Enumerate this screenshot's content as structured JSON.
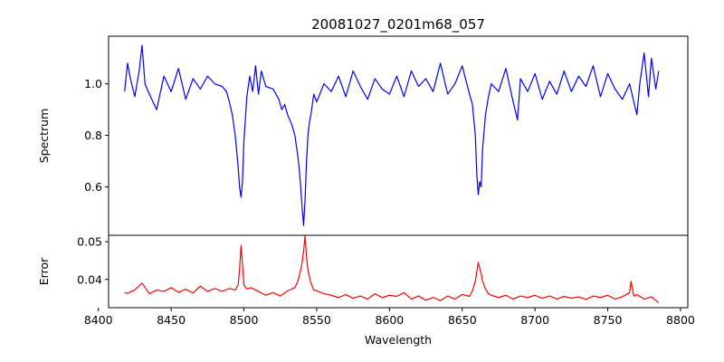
{
  "chart_data": [
    {
      "type": "line",
      "title": "20081027_0201m68_057",
      "xlabel": "",
      "ylabel": "Spectrum",
      "xlim": [
        8407,
        8805
      ],
      "ylim": [
        0.412,
        1.185
      ],
      "yticks": [
        0.6,
        0.8,
        1.0
      ],
      "ytick_labels": [
        "0.6",
        "0.8",
        "1.0"
      ],
      "grid": false,
      "series": [
        {
          "color": "#0000ff",
          "x": [
            8418,
            8420,
            8422,
            8425,
            8428,
            8430,
            8432,
            8435,
            8440,
            8445,
            8450,
            8455,
            8460,
            8465,
            8470,
            8475,
            8480,
            8485,
            8488,
            8490,
            8492,
            8494,
            8496,
            8497,
            8498,
            8499,
            8500,
            8502,
            8504,
            8506,
            8508,
            8510,
            8512,
            8515,
            8520,
            8524,
            8526,
            8528,
            8530,
            8533,
            8535,
            8537,
            8538,
            8539,
            8540,
            8541,
            8542,
            8543,
            8544,
            8545,
            8546,
            8548,
            8550,
            8555,
            8560,
            8565,
            8570,
            8575,
            8580,
            8585,
            8590,
            8595,
            8600,
            8605,
            8610,
            8615,
            8620,
            8625,
            8630,
            8635,
            8640,
            8645,
            8650,
            8655,
            8657,
            8659,
            8660,
            8661,
            8662,
            8663,
            8664,
            8666,
            8668,
            8670,
            8675,
            8680,
            8685,
            8688,
            8690,
            8695,
            8700,
            8705,
            8710,
            8715,
            8720,
            8725,
            8730,
            8735,
            8740,
            8745,
            8750,
            8755,
            8760,
            8765,
            8770,
            8772,
            8775,
            8778,
            8780,
            8783,
            8785
          ],
          "y": [
            0.97,
            1.08,
            1.02,
            0.95,
            1.05,
            1.15,
            1.0,
            0.96,
            0.9,
            1.03,
            0.97,
            1.06,
            0.94,
            1.02,
            0.98,
            1.03,
            1.0,
            0.99,
            0.97,
            0.93,
            0.88,
            0.8,
            0.68,
            0.6,
            0.56,
            0.62,
            0.78,
            0.95,
            1.03,
            0.97,
            1.07,
            0.96,
            1.05,
            0.99,
            0.98,
            0.94,
            0.9,
            0.92,
            0.88,
            0.84,
            0.8,
            0.72,
            0.67,
            0.6,
            0.52,
            0.45,
            0.55,
            0.7,
            0.8,
            0.85,
            0.88,
            0.96,
            0.93,
            1.0,
            0.97,
            1.03,
            0.95,
            1.05,
            0.99,
            0.94,
            1.02,
            0.98,
            0.96,
            1.03,
            0.95,
            1.05,
            0.99,
            1.02,
            0.97,
            1.08,
            0.96,
            1.0,
            1.07,
            0.96,
            0.92,
            0.8,
            0.65,
            0.57,
            0.62,
            0.6,
            0.75,
            0.88,
            0.95,
            1.0,
            0.97,
            1.06,
            0.93,
            0.86,
            1.02,
            0.97,
            1.04,
            0.94,
            1.01,
            0.96,
            1.05,
            0.97,
            1.03,
            0.99,
            1.07,
            0.95,
            1.04,
            0.98,
            0.94,
            1.0,
            0.88,
            1.0,
            1.12,
            0.95,
            1.1,
            0.98,
            1.05
          ]
        }
      ]
    },
    {
      "type": "line",
      "title": "",
      "xlabel": "Wavelength",
      "ylabel": "Error",
      "xlim": [
        8407,
        8805
      ],
      "ylim": [
        0.0325,
        0.0517
      ],
      "xticks": [
        8400,
        8450,
        8500,
        8550,
        8600,
        8650,
        8700,
        8750,
        8800
      ],
      "xtick_labels": [
        "8400",
        "8450",
        "8500",
        "8550",
        "8600",
        "8650",
        "8700",
        "8750",
        "8800"
      ],
      "yticks": [
        0.04,
        0.05
      ],
      "ytick_labels": [
        "0.04",
        "0.05"
      ],
      "grid": false,
      "series": [
        {
          "color": "#ff0000",
          "x": [
            8418,
            8420,
            8425,
            8430,
            8435,
            8440,
            8445,
            8450,
            8455,
            8460,
            8465,
            8470,
            8475,
            8480,
            8485,
            8490,
            8494,
            8496,
            8497,
            8498,
            8499,
            8500,
            8502,
            8505,
            8510,
            8515,
            8520,
            8525,
            8530,
            8535,
            8537,
            8539,
            8540,
            8541,
            8542,
            8543,
            8544,
            8546,
            8548,
            8550,
            8555,
            8560,
            8565,
            8570,
            8575,
            8580,
            8585,
            8590,
            8595,
            8600,
            8605,
            8610,
            8615,
            8620,
            8625,
            8630,
            8635,
            8640,
            8645,
            8650,
            8655,
            8657,
            8659,
            8660,
            8661,
            8662,
            8663,
            8664,
            8666,
            8668,
            8670,
            8675,
            8680,
            8685,
            8690,
            8695,
            8700,
            8705,
            8710,
            8715,
            8720,
            8725,
            8730,
            8735,
            8740,
            8745,
            8750,
            8755,
            8760,
            8765,
            8766,
            8767,
            8768,
            8770,
            8775,
            8780,
            8785
          ],
          "y": [
            0.0365,
            0.0363,
            0.0372,
            0.039,
            0.0362,
            0.0372,
            0.0368,
            0.0378,
            0.0366,
            0.0374,
            0.0364,
            0.0382,
            0.0368,
            0.0376,
            0.0368,
            0.0376,
            0.0372,
            0.0385,
            0.0425,
            0.049,
            0.044,
            0.0385,
            0.0375,
            0.0378,
            0.0368,
            0.0358,
            0.0365,
            0.0356,
            0.037,
            0.0378,
            0.0395,
            0.0425,
            0.0445,
            0.0475,
            0.0515,
            0.046,
            0.0425,
            0.039,
            0.0372,
            0.037,
            0.0362,
            0.0358,
            0.0352,
            0.036,
            0.035,
            0.0356,
            0.0348,
            0.0362,
            0.0352,
            0.0358,
            0.0355,
            0.0365,
            0.0348,
            0.0356,
            0.0345,
            0.0352,
            0.0344,
            0.0356,
            0.0348,
            0.036,
            0.0355,
            0.037,
            0.0395,
            0.042,
            0.0445,
            0.043,
            0.0415,
            0.0395,
            0.0375,
            0.0362,
            0.0358,
            0.0352,
            0.0358,
            0.0348,
            0.0356,
            0.0352,
            0.0358,
            0.035,
            0.0356,
            0.0348,
            0.0355,
            0.035,
            0.0354,
            0.0347,
            0.0356,
            0.0352,
            0.0358,
            0.0348,
            0.0354,
            0.0365,
            0.0395,
            0.0375,
            0.0356,
            0.036,
            0.0348,
            0.0354,
            0.0338
          ]
        }
      ]
    }
  ]
}
